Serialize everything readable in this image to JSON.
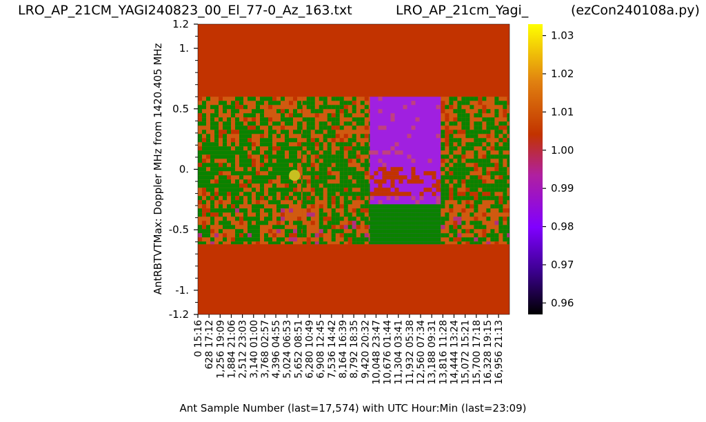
{
  "titles": {
    "left": "LRO_AP_21CM_YAGI240823_00_El_77-0_Az_163.txt",
    "middle": "LRO_AP_21cm_Yagi_",
    "right": "(ezCon240108a.py)"
  },
  "chart_data": {
    "type": "heatmap",
    "xlabel": "Ant Sample Number (last=17,574) with UTC Hour:Min (last=23:09)",
    "ylabel": "AntRBTVTMax:  Doppler MHz from 1420.405 MHz",
    "xlim": [
      0,
      17574
    ],
    "ylim": [
      -1.2,
      1.2
    ],
    "x_ticks": [
      {
        "sample": "0",
        "time": "15:16"
      },
      {
        "sample": "628",
        "time": "17:12"
      },
      {
        "sample": "1,256",
        "time": "19:09"
      },
      {
        "sample": "1,884",
        "time": "21:06"
      },
      {
        "sample": "2,512",
        "time": "23:03"
      },
      {
        "sample": "3,140",
        "time": "01:00"
      },
      {
        "sample": "3,768",
        "time": "02:57"
      },
      {
        "sample": "4,396",
        "time": "04:55"
      },
      {
        "sample": "5,024",
        "time": "06:53"
      },
      {
        "sample": "5,652",
        "time": "08:51"
      },
      {
        "sample": "6,280",
        "time": "10:49"
      },
      {
        "sample": "6,908",
        "time": "12:45"
      },
      {
        "sample": "7,536",
        "time": "14:42"
      },
      {
        "sample": "8,164",
        "time": "16:39"
      },
      {
        "sample": "8,792",
        "time": "18:35"
      },
      {
        "sample": "9,420",
        "time": "20:32"
      },
      {
        "sample": "10,048",
        "time": "23:47"
      },
      {
        "sample": "10,676",
        "time": "01:44"
      },
      {
        "sample": "11,304",
        "time": "03:41"
      },
      {
        "sample": "11,932",
        "time": "05:38"
      },
      {
        "sample": "12,560",
        "time": "07:34"
      },
      {
        "sample": "13,188",
        "time": "09:31"
      },
      {
        "sample": "13,816",
        "time": "11:28"
      },
      {
        "sample": "14,444",
        "time": "13:24"
      },
      {
        "sample": "15,072",
        "time": "15:21"
      },
      {
        "sample": "15,700",
        "time": "17:18"
      },
      {
        "sample": "16,328",
        "time": "19:15"
      },
      {
        "sample": "16,956",
        "time": "21:13"
      }
    ],
    "y_ticks": [
      {
        "value": 1.2,
        "label": "1.2"
      },
      {
        "value": 1.0,
        "label": "1."
      },
      {
        "value": 0.5,
        "label": "0.5"
      },
      {
        "value": 0.0,
        "label": "0."
      },
      {
        "value": -0.5,
        "label": "-0.5"
      },
      {
        "value": -1.0,
        "label": "-1."
      },
      {
        "value": -1.2,
        "label": "-1.2"
      }
    ],
    "y_minor_ticks": [
      1.1,
      0.9,
      0.8,
      0.7,
      0.6,
      0.4,
      0.3,
      0.2,
      0.1,
      -0.1,
      -0.2,
      -0.3,
      -0.4,
      -0.6,
      -0.7,
      -0.8,
      -0.9,
      -1.1
    ],
    "colorbar": {
      "min": 0.957,
      "max": 1.033,
      "ticks": [
        {
          "value": 1.03,
          "label": "1.03"
        },
        {
          "value": 1.02,
          "label": "1.02"
        },
        {
          "value": 1.01,
          "label": "1.01"
        },
        {
          "value": 1.0,
          "label": "1.00"
        },
        {
          "value": 0.99,
          "label": "0.99"
        },
        {
          "value": 0.98,
          "label": "0.98"
        },
        {
          "value": 0.97,
          "label": "0.97"
        },
        {
          "value": 0.96,
          "label": "0.96"
        }
      ],
      "colormap": "gnuplot"
    },
    "band": {
      "doppler_range": [
        -0.62,
        0.6
      ],
      "segments": [
        {
          "x": [
            0,
            5900
          ],
          "kind": "mixed"
        },
        {
          "x": [
            5900,
            9700
          ],
          "kind": "mixed"
        },
        {
          "x": [
            9700,
            13700
          ],
          "kind": "low"
        },
        {
          "x": [
            13700,
            17574
          ],
          "kind": "mixed"
        }
      ]
    },
    "marker": {
      "x": 5450,
      "y": -0.05,
      "color": "#c8c020"
    },
    "colors": {
      "background": "#c23300",
      "orange": "#d05a10",
      "green": "#0a8200",
      "purple": "#a020e0",
      "marker": "#c8c020"
    }
  }
}
